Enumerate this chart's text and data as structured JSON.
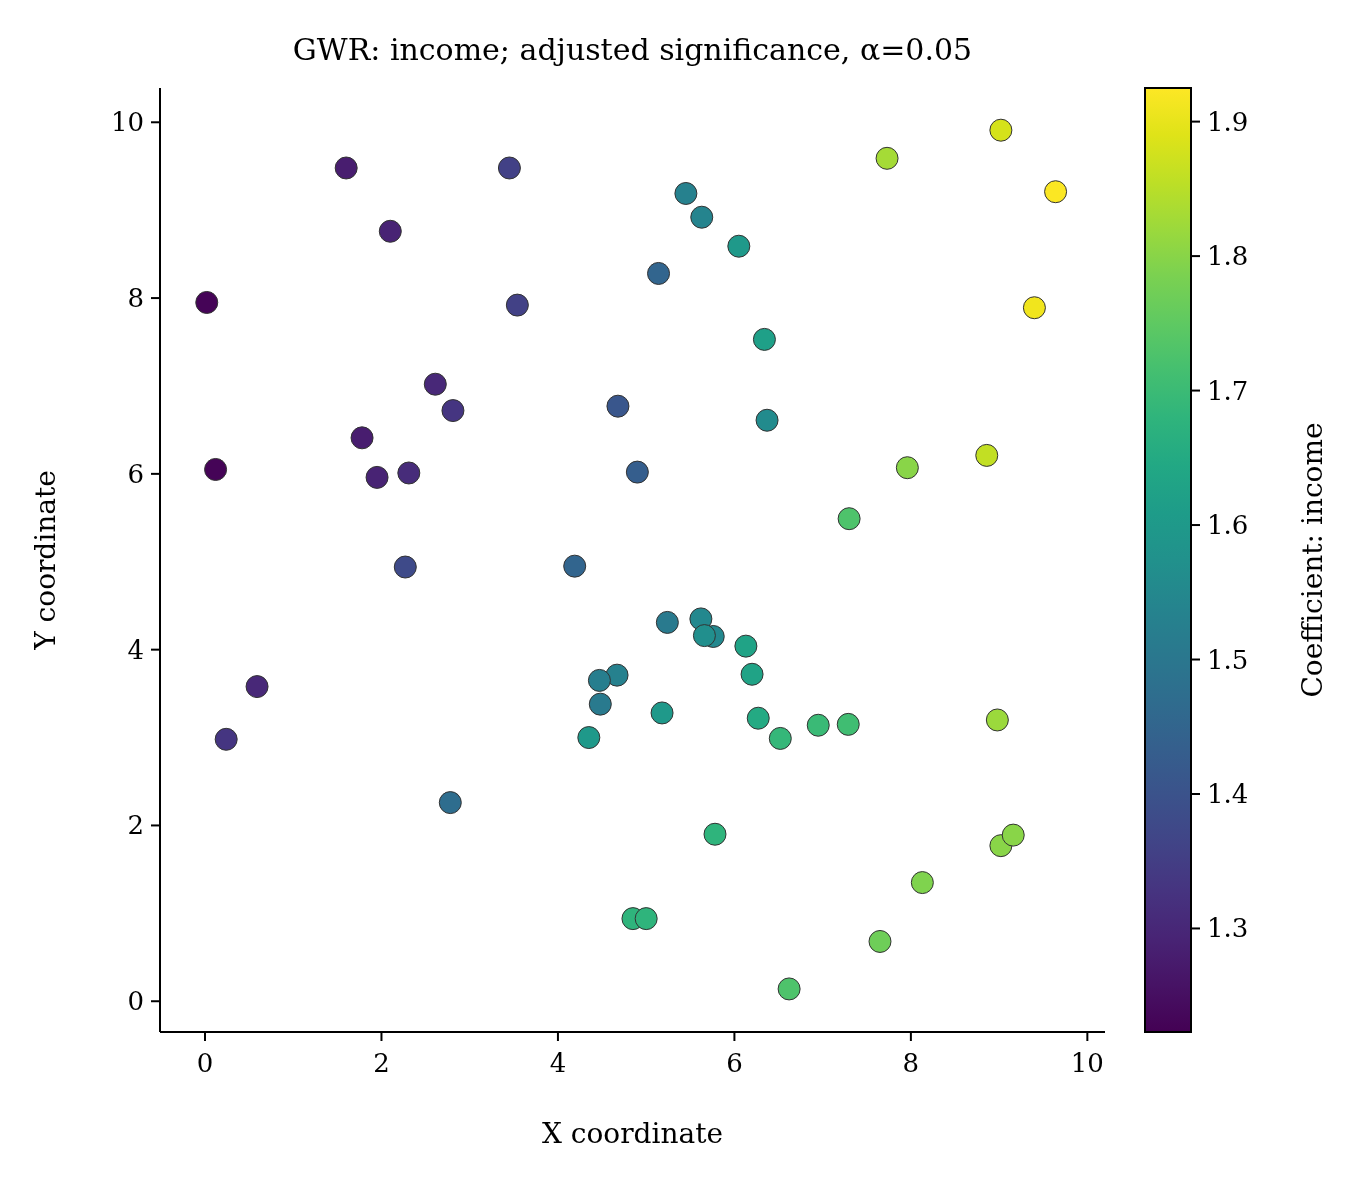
{
  "chart_data": {
    "type": "scatter",
    "title": "GWR: income; adjusted significance, α=0.05",
    "xlabel": "X coordinate",
    "ylabel": "Y coordinate",
    "clabel": "Coefficient: income",
    "xlim": [
      -0.51,
      10.2
    ],
    "ylim": [
      -0.35,
      10.39
    ],
    "xticks": [
      0,
      2,
      4,
      6,
      8,
      10
    ],
    "yticks": [
      0,
      2,
      4,
      6,
      8,
      10
    ],
    "clim": [
      1.223,
      1.925
    ],
    "cticks": [
      1.3,
      1.4,
      1.5,
      1.6,
      1.7,
      1.8,
      1.9
    ],
    "grid": false,
    "marker": "circle",
    "x": [
      1.6,
      3.45,
      2.1,
      0.02,
      3.54,
      2.61,
      2.81,
      1.78,
      0.12,
      1.95,
      2.31,
      2.27,
      0.59,
      0.24,
      2.78,
      5.45,
      5.63,
      6.05,
      5.14,
      6.34,
      4.68,
      6.37,
      4.9,
      4.19,
      5.24,
      5.62,
      5.76,
      6.13,
      6.2,
      4.67,
      4.47,
      4.48,
      5.18,
      4.35,
      6.27,
      6.52,
      6.95,
      7.29,
      5.78,
      4.85,
      5.0,
      6.62,
      7.65,
      8.13,
      9.02,
      9.16,
      8.98,
      7.3,
      7.96,
      8.86,
      7.73,
      9.02,
      9.64,
      9.4,
      5.66
    ],
    "values": [
      9.48,
      9.48,
      8.76,
      7.95,
      7.92,
      7.02,
      6.72,
      6.41,
      6.05,
      5.96,
      6.01,
      4.94,
      3.58,
      2.98,
      2.26,
      9.19,
      8.92,
      8.59,
      8.28,
      7.53,
      6.77,
      6.61,
      6.02,
      4.95,
      4.31,
      4.35,
      4.15,
      4.04,
      3.72,
      3.71,
      3.65,
      3.38,
      3.28,
      3.0,
      3.22,
      2.99,
      3.14,
      3.15,
      1.9,
      0.94,
      0.94,
      0.14,
      0.68,
      1.35,
      1.77,
      1.89,
      3.2,
      5.49,
      6.07,
      6.21,
      9.59,
      9.91,
      9.21,
      7.89,
      4.16
    ],
    "cvalues": [
      1.28,
      1.36,
      1.29,
      1.23,
      1.36,
      1.3,
      1.33,
      1.28,
      1.23,
      1.29,
      1.31,
      1.38,
      1.3,
      1.33,
      1.47,
      1.53,
      1.54,
      1.6,
      1.45,
      1.62,
      1.41,
      1.56,
      1.43,
      1.45,
      1.51,
      1.55,
      1.55,
      1.63,
      1.63,
      1.53,
      1.52,
      1.51,
      1.6,
      1.6,
      1.65,
      1.69,
      1.7,
      1.71,
      1.68,
      1.68,
      1.68,
      1.73,
      1.77,
      1.79,
      1.8,
      1.8,
      1.82,
      1.73,
      1.8,
      1.86,
      1.83,
      1.88,
      1.92,
      1.91,
      1.57
    ]
  }
}
